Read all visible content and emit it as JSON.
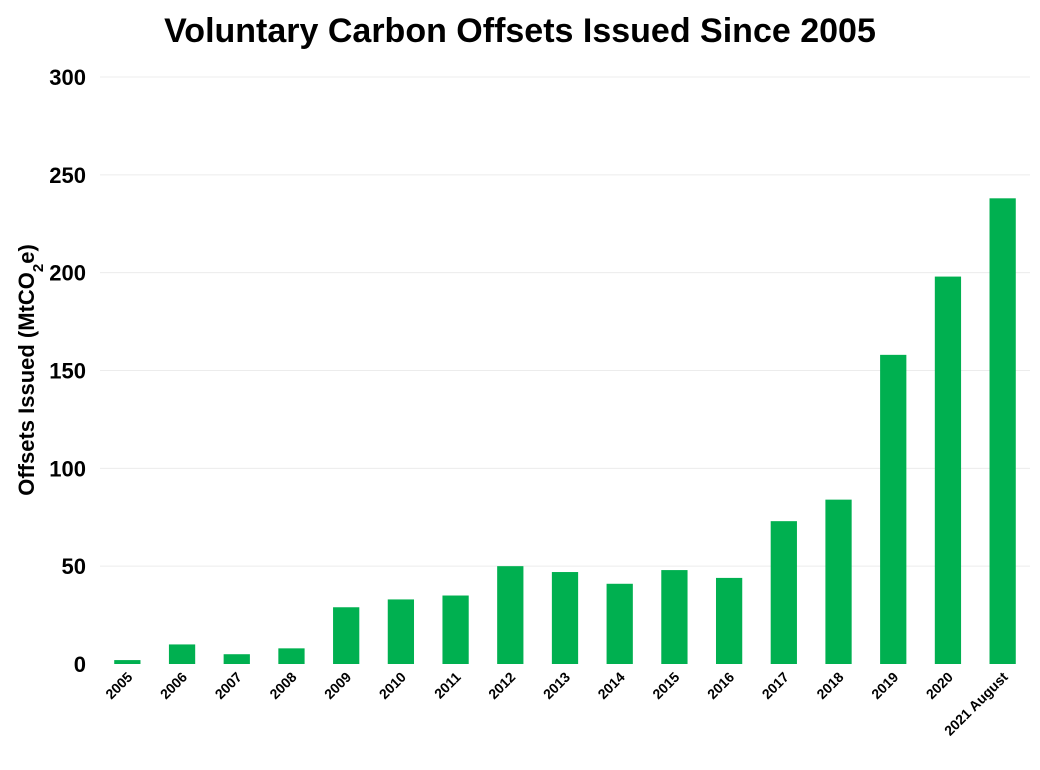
{
  "chart_data": {
    "type": "bar",
    "title": "Voluntary Carbon Offsets Issued Since 2005",
    "ylabel": {
      "main": "Offsets Issued (MtCO",
      "sub": "2",
      "tail": "e)"
    },
    "xlabel": "",
    "ylim": [
      0,
      300
    ],
    "yticks": [
      0,
      50,
      100,
      150,
      200,
      250,
      300
    ],
    "grid": true,
    "bar_color": "#00b050",
    "categories": [
      "2005",
      "2006",
      "2007",
      "2008",
      "2009",
      "2010",
      "2011",
      "2012",
      "2013",
      "2014",
      "2015",
      "2016",
      "2017",
      "2018",
      "2019",
      "2020",
      "2021 August"
    ],
    "values": [
      2,
      10,
      5,
      8,
      29,
      33,
      35,
      50,
      47,
      41,
      48,
      44,
      73,
      84,
      158,
      198,
      238
    ]
  }
}
